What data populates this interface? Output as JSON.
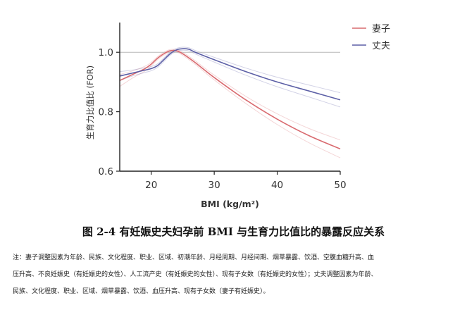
{
  "chart_data": {
    "type": "line",
    "title": "",
    "xlabel": "BMI (kg/m²)",
    "ylabel": "生育力比值比 (FOR)",
    "xlim": [
      15,
      50
    ],
    "ylim": [
      0.6,
      1.1
    ],
    "xticks": [
      20,
      30,
      40,
      50
    ],
    "yticks": [
      0.6,
      0.8,
      1.0
    ],
    "xtick_labels": [
      "20",
      "30",
      "40",
      "50"
    ],
    "ytick_labels": [
      "0.6",
      "0.8",
      "1.0"
    ],
    "reference_line": 1.0,
    "grid": false,
    "legend_position": "top-right",
    "series": [
      {
        "name": "妻子",
        "color": "#d96a6f",
        "x": [
          15,
          17,
          19,
          20,
          21,
          22,
          23,
          24,
          25,
          27,
          30,
          35,
          40,
          45,
          50
        ],
        "y": [
          0.905,
          0.925,
          0.945,
          0.96,
          0.98,
          0.995,
          1.005,
          1.005,
          0.995,
          0.965,
          0.915,
          0.84,
          0.775,
          0.72,
          0.675
        ],
        "ci_width": [
          0.02,
          0.012,
          0.008,
          0.006,
          0.005,
          0.005,
          0.004,
          0.004,
          0.005,
          0.006,
          0.008,
          0.012,
          0.018,
          0.024,
          0.03
        ]
      },
      {
        "name": "丈夫",
        "color": "#5c5fa6",
        "x": [
          15,
          17,
          19,
          20,
          21,
          22,
          23,
          24,
          25,
          26,
          27,
          30,
          35,
          40,
          45,
          50
        ],
        "y": [
          0.92,
          0.93,
          0.94,
          0.945,
          0.955,
          0.975,
          0.995,
          1.008,
          1.012,
          1.01,
          1.0,
          0.975,
          0.935,
          0.9,
          0.87,
          0.84
        ],
        "ci_width": [
          0.015,
          0.01,
          0.008,
          0.007,
          0.006,
          0.006,
          0.005,
          0.005,
          0.005,
          0.005,
          0.006,
          0.008,
          0.012,
          0.016,
          0.02,
          0.024
        ]
      }
    ]
  },
  "caption": "图 2-4  有妊娠史夫妇孕前 BMI 与生育力比值比的暴露反应关系",
  "note_lines": [
    "注：妻子调整因素为年龄、民族、文化程度、职业、区域、初潮年龄、月经周期、月经间期、烟草暴露、饮酒、空腹血糖升高、血",
    "压升高、不良妊娠史（有妊娠史的女性）、人工流产史（有妊娠史的女性）、现有子女数（有妊娠史的女性）；丈夫调整因素为年龄、",
    "民族、文化程度、职业、区域、烟草暴露、饮酒、血压升高、现有子女数（妻子有妊娠史）。"
  ]
}
